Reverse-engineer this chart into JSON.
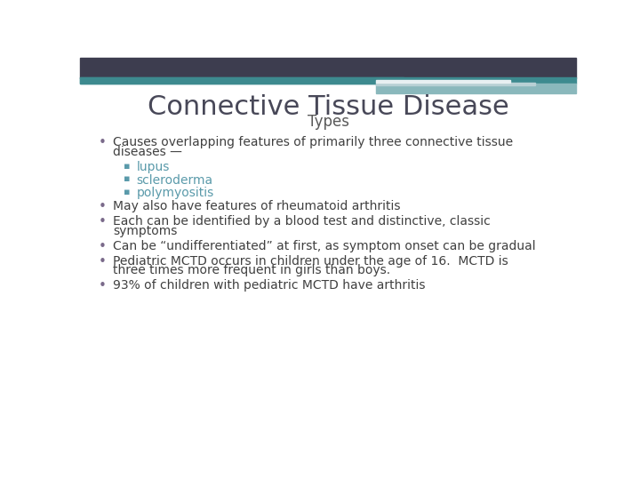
{
  "title": "Connective Tissue Disease",
  "subtitle": "Types",
  "title_color": "#484858",
  "subtitle_color": "#595959",
  "background_color": "#ffffff",
  "header_bar_dark": "#3d3d4f",
  "header_bar_teal": "#3d8a8f",
  "header_bar_light1": "#8ab8bc",
  "header_bar_light2": "#b8d0d4",
  "header_bar_white": "#e8f0f2",
  "bullet_color": "#7a6a8a",
  "sub_bullet_color": "#5a9aaa",
  "text_color": "#404040",
  "bullets": [
    {
      "level": 0,
      "text": "Causes overlapping features of primarily three connective tissue\ndiseases —"
    },
    {
      "level": 1,
      "text": "lupus"
    },
    {
      "level": 1,
      "text": "scleroderma"
    },
    {
      "level": 1,
      "text": "polymyositis"
    },
    {
      "level": 0,
      "text": "May also have features of rheumatoid arthritis"
    },
    {
      "level": 0,
      "text": "Each can be identified by a blood test and distinctive, classic\nsymptoms"
    },
    {
      "level": 0,
      "text": "Can be “undifferentiated” at first, as symptom onset can be gradual"
    },
    {
      "level": 0,
      "text": "Pediatric MCTD occurs in children under the age of 16.  MCTD is\nthree times more frequent in girls than boys."
    },
    {
      "level": 0,
      "text": "93% of children with pediatric MCTD have arthritis"
    }
  ]
}
